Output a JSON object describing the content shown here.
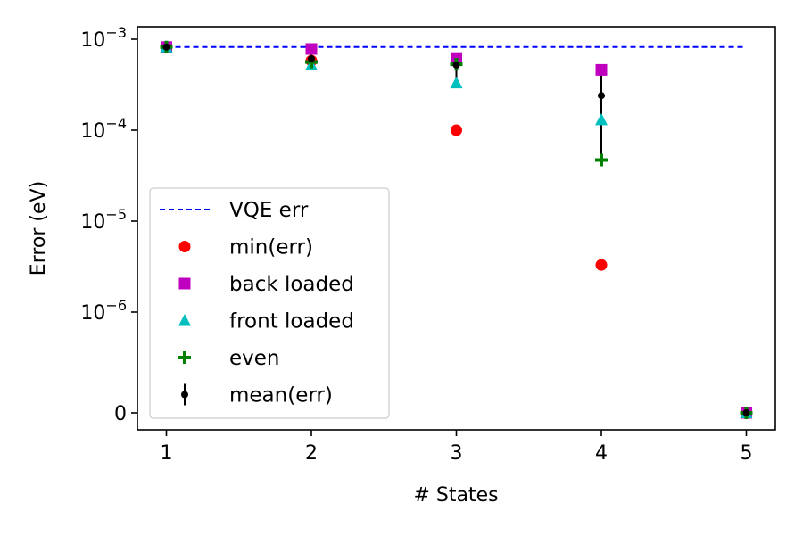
{
  "chart_data": {
    "type": "scatter",
    "xlabel": "# States",
    "ylabel": "Error (eV)",
    "yscale": "symlog",
    "x_ticks": [
      1,
      2,
      3,
      4,
      5
    ],
    "x_tick_labels": [
      "1",
      "2",
      "3",
      "4",
      "5"
    ],
    "y_ticks": [
      {
        "value": 0.001,
        "base": "10",
        "exp": "−3"
      },
      {
        "value": 0.0001,
        "base": "10",
        "exp": "−4"
      },
      {
        "value": 1e-05,
        "base": "10",
        "exp": "−5"
      },
      {
        "value": 1e-06,
        "base": "10",
        "exp": "−6"
      },
      {
        "value": 0,
        "base": "0",
        "exp": ""
      }
    ],
    "xlim": [
      0.8,
      5.2
    ],
    "legend_position": "lower-left",
    "series": [
      {
        "name": "VQE err",
        "kind": "line",
        "style": "dashed",
        "color": "#0000ff",
        "x": [
          1,
          5
        ],
        "y": [
          0.00082,
          0.00082
        ]
      },
      {
        "name": "min(err)",
        "kind": "marker",
        "marker": "circle",
        "color": "#ff0000",
        "x": [
          1,
          2,
          3,
          4,
          5
        ],
        "y": [
          0.00082,
          0.00058,
          0.0001,
          3.3e-06,
          0
        ]
      },
      {
        "name": "back loaded",
        "kind": "marker",
        "marker": "square",
        "color": "#bf00bf",
        "x": [
          1,
          2,
          3,
          4,
          5
        ],
        "y": [
          0.00082,
          0.00078,
          0.00062,
          0.00046,
          0
        ]
      },
      {
        "name": "front loaded",
        "kind": "marker",
        "marker": "triangle",
        "color": "#00bfbf",
        "x": [
          1,
          2,
          3,
          4,
          5
        ],
        "y": [
          0.00082,
          0.00052,
          0.00033,
          0.00013,
          0
        ]
      },
      {
        "name": "even",
        "kind": "marker",
        "marker": "plus",
        "color": "#008000",
        "x": [
          1,
          2,
          3,
          4,
          5
        ],
        "y": [
          0.00082,
          0.00056,
          0.00053,
          4.7e-05,
          0
        ]
      },
      {
        "name": "mean(err)",
        "kind": "errorbar",
        "marker": "dot",
        "color": "#000000",
        "x": [
          1,
          2,
          3,
          4,
          5
        ],
        "y": [
          0.00082,
          0.00061,
          0.00052,
          0.00024,
          0
        ],
        "yerr_low": [
          0.00082,
          0.00052,
          0.00033,
          4.7e-05,
          0
        ],
        "yerr_high": [
          0.00082,
          0.00078,
          0.00062,
          0.00046,
          0
        ]
      }
    ]
  }
}
